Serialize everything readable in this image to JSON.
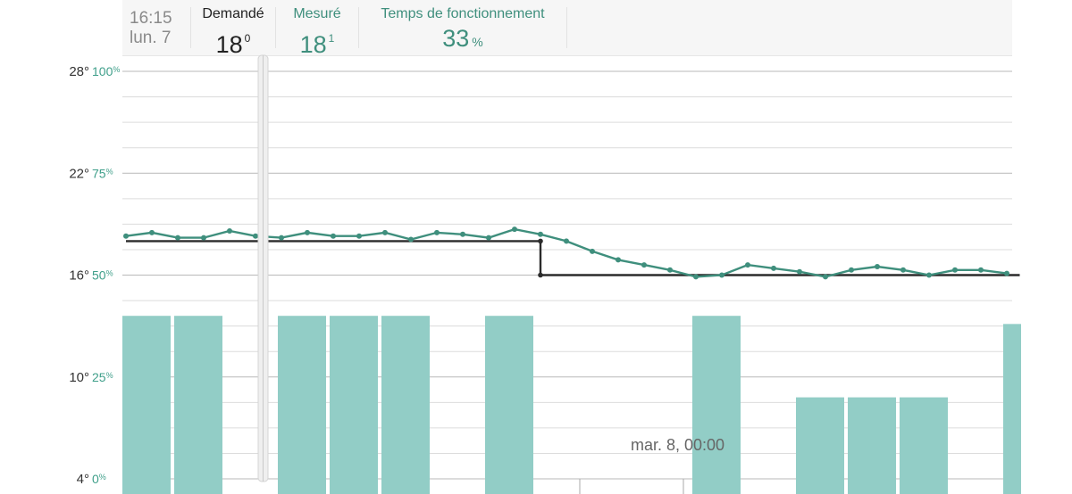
{
  "header": {
    "time": "16:15",
    "day": "lun. 7",
    "requested": {
      "label": "Demandé",
      "value": "18",
      "sup": "0"
    },
    "measured": {
      "label": "Mesuré",
      "value": "18",
      "sup": "1"
    },
    "runtime": {
      "label": "Temps de fonctionnement",
      "value": "33",
      "unit": "%"
    }
  },
  "colors": {
    "measured_line": "#3f8f7d",
    "setpoint_line": "#2b2b2b",
    "bars": "#92cdc6",
    "axis_temp": "#333333",
    "axis_pct": "#3f9f8a"
  },
  "chart_data": {
    "type": "line",
    "temp_axis": {
      "ticks": [
        "28°",
        "22°",
        "16°",
        "10°",
        "4°"
      ],
      "values": [
        28,
        22,
        16,
        10,
        4
      ],
      "range": [
        4,
        28
      ]
    },
    "pct_axis": {
      "ticks": [
        "100%",
        "75%",
        "50%",
        "25%",
        "0%"
      ],
      "values": [
        100,
        75,
        50,
        25,
        0
      ],
      "range": [
        0,
        100
      ]
    },
    "time_label": "mar. 8, 00:00",
    "cursor": "16:15",
    "series": [
      {
        "key": "measured",
        "values": [
          18.3,
          18.5,
          18.2,
          18.2,
          18.6,
          18.3,
          18.2,
          18.5,
          18.3,
          18.3,
          18.5,
          18.1,
          18.5,
          18.4,
          18.2,
          18.7,
          18.4,
          18.0,
          17.4,
          16.9,
          16.6,
          16.3,
          15.9,
          16.0,
          16.6,
          16.4,
          16.2,
          15.9,
          16.3,
          16.5,
          16.3,
          16.0,
          16.3,
          16.3,
          16.1
        ]
      },
      {
        "key": "setpoint",
        "steps": [
          [
            0,
            18.0
          ],
          [
            16,
            18.0
          ],
          [
            16,
            16.0
          ],
          [
            34.5,
            16.0
          ]
        ]
      }
    ],
    "runtime_bars": [
      {
        "slot": 0,
        "pct": 40
      },
      {
        "slot": 1,
        "pct": 40
      },
      {
        "slot": 3,
        "pct": 40
      },
      {
        "slot": 4,
        "pct": 40
      },
      {
        "slot": 5,
        "pct": 40
      },
      {
        "slot": 7,
        "pct": 40
      },
      {
        "slot": 11,
        "pct": 40
      },
      {
        "slot": 13,
        "pct": 20
      },
      {
        "slot": 14,
        "pct": 20
      },
      {
        "slot": 15,
        "pct": 20
      },
      {
        "slot": 17,
        "pct": 38
      }
    ]
  }
}
